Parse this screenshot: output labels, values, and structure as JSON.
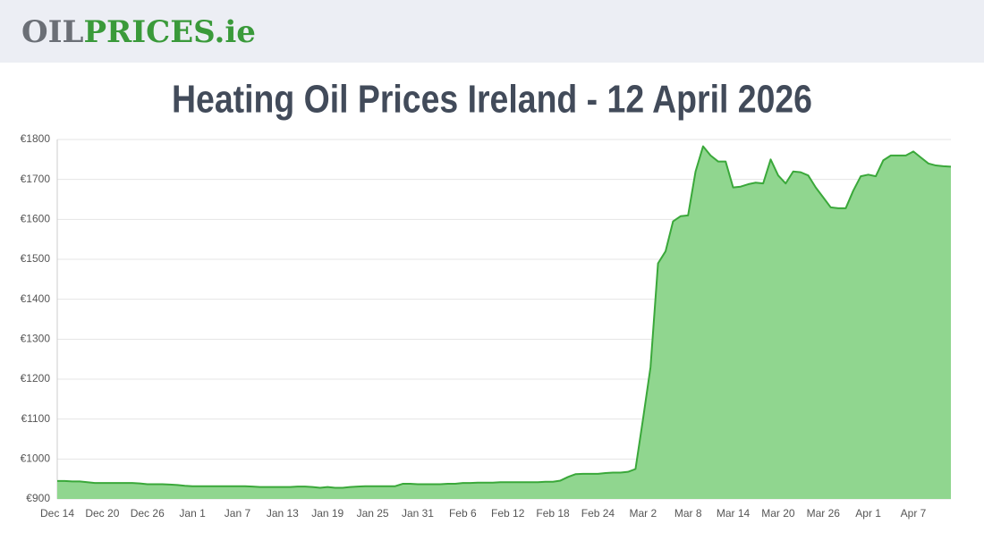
{
  "header": {
    "logo_1": "OIL",
    "logo_2": "PRICES.ie"
  },
  "chart_data": {
    "type": "area",
    "title": "Heating Oil Prices Ireland - 12 April 2026",
    "categories": [
      "Dec 14",
      null,
      null,
      null,
      null,
      null,
      "Dec 20",
      null,
      null,
      null,
      null,
      null,
      "Dec 26",
      null,
      null,
      null,
      null,
      null,
      "Jan 1",
      null,
      null,
      null,
      null,
      null,
      "Jan 7",
      null,
      null,
      null,
      null,
      null,
      "Jan 13",
      null,
      null,
      null,
      null,
      null,
      "Jan 19",
      null,
      null,
      null,
      null,
      null,
      "Jan 25",
      null,
      null,
      null,
      null,
      null,
      "Jan 31",
      null,
      null,
      null,
      null,
      null,
      "Feb 6",
      null,
      null,
      null,
      null,
      null,
      "Feb 12",
      null,
      null,
      null,
      null,
      null,
      "Feb 18",
      null,
      null,
      null,
      null,
      null,
      "Feb 24",
      null,
      null,
      null,
      null,
      null,
      "Mar 2",
      null,
      null,
      null,
      null,
      null,
      "Mar 8",
      null,
      null,
      null,
      null,
      null,
      "Mar 14",
      null,
      null,
      null,
      null,
      null,
      "Mar 20",
      null,
      null,
      null,
      null,
      null,
      "Mar 26",
      null,
      null,
      null,
      null,
      null,
      "Apr 1",
      null,
      null,
      null,
      null,
      null,
      "Apr 7",
      null,
      null,
      null,
      null,
      null
    ],
    "values": [
      945,
      945,
      944,
      944,
      942,
      940,
      940,
      940,
      940,
      940,
      940,
      939,
      937,
      937,
      937,
      936,
      935,
      933,
      932,
      932,
      932,
      932,
      932,
      932,
      932,
      932,
      931,
      930,
      930,
      930,
      930,
      930,
      931,
      931,
      930,
      928,
      930,
      928,
      928,
      930,
      931,
      932,
      932,
      932,
      932,
      932,
      938,
      938,
      937,
      937,
      937,
      937,
      938,
      938,
      940,
      940,
      941,
      941,
      941,
      942,
      942,
      942,
      942,
      942,
      942,
      943,
      943,
      946,
      955,
      962,
      963,
      963,
      963,
      965,
      966,
      966,
      968,
      975,
      1100,
      1230,
      1490,
      1520,
      1595,
      1608,
      1610,
      1720,
      1783,
      1760,
      1745,
      1745,
      1680,
      1682,
      1688,
      1692,
      1690,
      1750,
      1710,
      1690,
      1720,
      1718,
      1710,
      1680,
      1655,
      1630,
      1628,
      1628,
      1672,
      1708,
      1712,
      1708,
      1748,
      1760,
      1760,
      1760,
      1770,
      1755,
      1740,
      1735,
      1733,
      1732
    ],
    "color": "#3aa83a",
    "fill": "#90d68f",
    "ylim": [
      900,
      1800
    ],
    "yticks": [
      {
        "value": 900,
        "label": "€900"
      },
      {
        "value": 1000,
        "label": "€1000"
      },
      {
        "value": 1100,
        "label": "€1100"
      },
      {
        "value": 1200,
        "label": "€1200"
      },
      {
        "value": 1300,
        "label": "€1300"
      },
      {
        "value": 1400,
        "label": "€1400"
      },
      {
        "value": 1500,
        "label": "€1500"
      },
      {
        "value": 1600,
        "label": "€1600"
      },
      {
        "value": 1700,
        "label": "€1700"
      },
      {
        "value": 1800,
        "label": "€1800"
      }
    ],
    "grid": true
  }
}
